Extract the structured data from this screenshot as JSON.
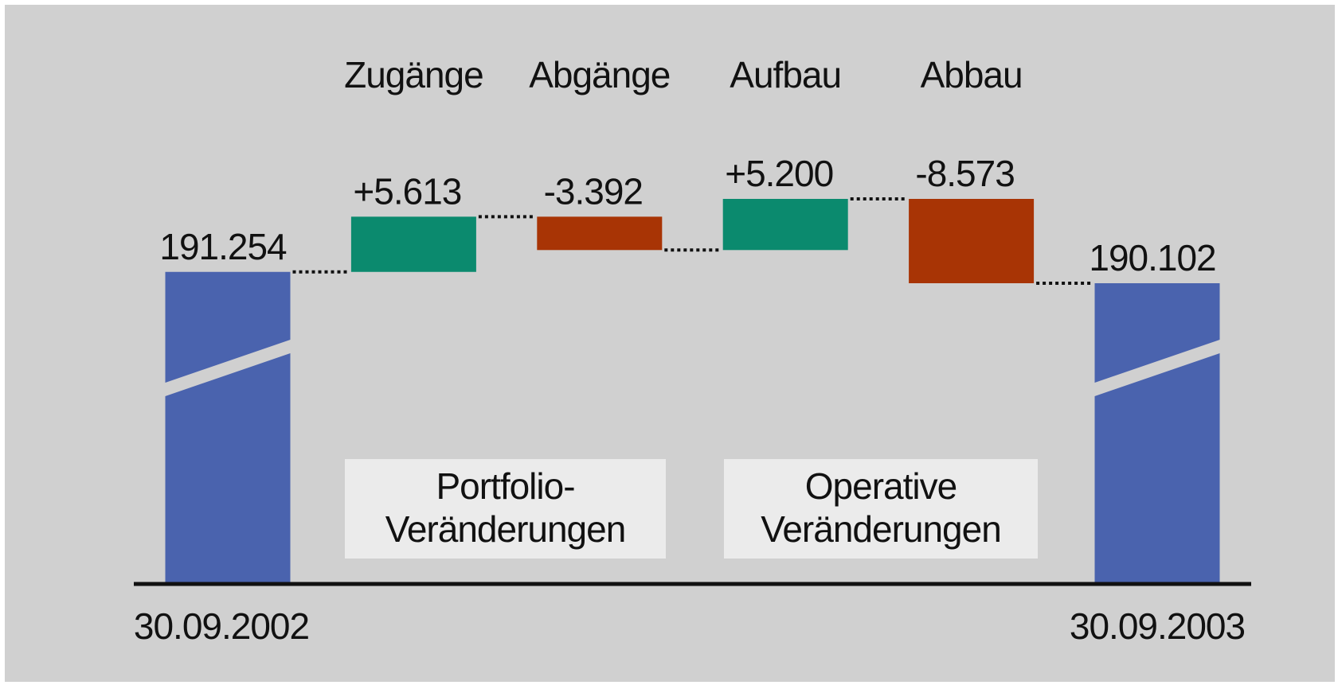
{
  "chart_data": {
    "type": "waterfall",
    "categories": [
      "30.09.2002",
      "Zugänge",
      "Abgänge",
      "Aufbau",
      "Abbau",
      "30.09.2003"
    ],
    "values": [
      191254,
      5613,
      -3392,
      5200,
      -8573,
      190102
    ],
    "value_labels": [
      "191.254",
      "+5.613",
      "-3.392",
      "+5.200",
      "-8.573",
      "190.102"
    ],
    "kinds": [
      "total",
      "change",
      "change",
      "change",
      "change",
      "total"
    ],
    "colors": {
      "total": "#4a63ae",
      "increase": "#0b8a6e",
      "decrease": "#a83405"
    },
    "annotations": [
      {
        "lines": [
          "Portfolio-",
          "Veränderungen"
        ]
      },
      {
        "lines": [
          "Operative",
          "Veränderungen"
        ]
      }
    ]
  }
}
